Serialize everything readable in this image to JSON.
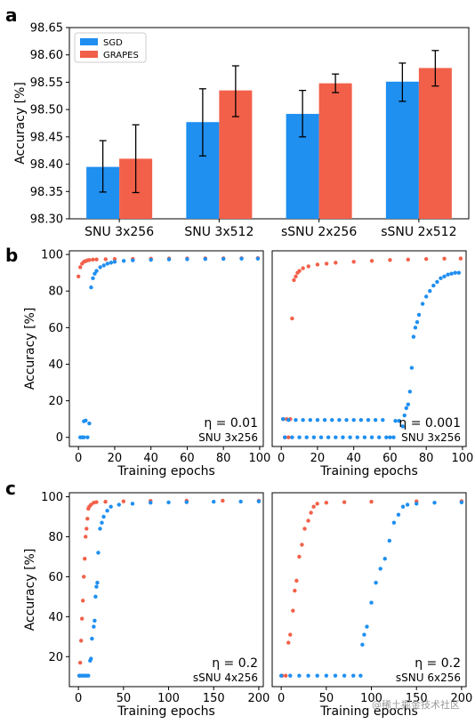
{
  "colors": {
    "sgd": "#1f8ff0",
    "grapes": "#f2604a"
  },
  "watermark": "@稀土掘金技术社区",
  "chart_data": [
    {
      "panel": "a",
      "type": "bar",
      "categories": [
        "SNU 3x256",
        "SNU 3x512",
        "sSNU 2x256",
        "sSNU 2x512"
      ],
      "ylabel": "Accuracy [%]",
      "ylim": [
        98.3,
        98.65
      ],
      "yticks": [
        "98.30",
        "98.35",
        "98.40",
        "98.45",
        "98.50",
        "98.55",
        "98.60",
        "98.65"
      ],
      "legend": "top-left",
      "series": [
        {
          "name": "SGD",
          "values": [
            98.395,
            98.477,
            98.492,
            98.551
          ],
          "err_low": [
            98.349,
            98.415,
            98.45,
            98.515
          ],
          "err_high": [
            98.443,
            98.538,
            98.535,
            98.585
          ]
        },
        {
          "name": "GRAPES",
          "values": [
            98.41,
            98.535,
            98.548,
            98.576
          ],
          "err_low": [
            98.348,
            98.487,
            98.531,
            98.543
          ],
          "err_high": [
            98.472,
            98.58,
            98.565,
            98.608
          ]
        }
      ]
    },
    {
      "panel": "b",
      "type": "scatter",
      "xlabel": "Training epochs",
      "ylabel": "Accuracy [%]",
      "xlim": [
        -5,
        102
      ],
      "ylim": [
        -5,
        102
      ],
      "xticks": [
        "0",
        "20",
        "40",
        "60",
        "80",
        "100"
      ],
      "yticks": [
        "0",
        "20",
        "40",
        "60",
        "80",
        "100"
      ],
      "annotation": "η = 0.01",
      "model": "SNU 3x256",
      "series": [
        {
          "name": "SGD",
          "points": [
            [
              1,
              0
            ],
            [
              2,
              0
            ],
            [
              3,
              0
            ],
            [
              3,
              8.8
            ],
            [
              4,
              9.2
            ],
            [
              5,
              0
            ],
            [
              6,
              7.6
            ],
            [
              7,
              82
            ],
            [
              8,
              87
            ],
            [
              9,
              89.5
            ],
            [
              10,
              91
            ],
            [
              12,
              93
            ],
            [
              14,
              94
            ],
            [
              16,
              95
            ],
            [
              18,
              95.5
            ],
            [
              20,
              96
            ],
            [
              25,
              96.5
            ],
            [
              30,
              96.8
            ],
            [
              40,
              97.1
            ],
            [
              50,
              97.3
            ],
            [
              60,
              97.4
            ],
            [
              70,
              97.5
            ],
            [
              80,
              97.6
            ],
            [
              90,
              97.7
            ],
            [
              99,
              97.7
            ]
          ]
        },
        {
          "name": "GRAPES",
          "points": [
            [
              0,
              88
            ],
            [
              1,
              93
            ],
            [
              2,
              95
            ],
            [
              3,
              96
            ],
            [
              4,
              96.4
            ],
            [
              5,
              96.8
            ],
            [
              6,
              97
            ],
            [
              8,
              97.2
            ],
            [
              10,
              97.3
            ],
            [
              15,
              97.4
            ],
            [
              20,
              97.5
            ],
            [
              30,
              97.6
            ],
            [
              40,
              97.7
            ],
            [
              50,
              97.8
            ],
            [
              60,
              97.85
            ],
            [
              70,
              97.9
            ],
            [
              80,
              97.9
            ],
            [
              90,
              97.95
            ],
            [
              99,
              98
            ]
          ]
        }
      ]
    },
    {
      "panel": "b-right",
      "type": "scatter",
      "xlabel": "Training epochs",
      "xlim": [
        -5,
        102
      ],
      "ylim": [
        -5,
        102
      ],
      "xticks": [
        "0",
        "20",
        "40",
        "60",
        "80",
        "100"
      ],
      "annotation": "η = 0.001",
      "model": "SNU 3x256",
      "series": [
        {
          "name": "SGD",
          "points": [
            [
              1,
              10
            ],
            [
              2,
              0
            ],
            [
              4,
              9.5
            ],
            [
              6,
              0
            ],
            [
              8,
              9.5
            ],
            [
              10,
              0
            ],
            [
              12,
              9.5
            ],
            [
              14,
              0
            ],
            [
              16,
              9.5
            ],
            [
              18,
              0
            ],
            [
              20,
              9.5
            ],
            [
              22,
              0
            ],
            [
              24,
              9.5
            ],
            [
              26,
              0
            ],
            [
              28,
              9.5
            ],
            [
              30,
              0
            ],
            [
              32,
              9.5
            ],
            [
              34,
              0
            ],
            [
              36,
              9.5
            ],
            [
              38,
              0
            ],
            [
              40,
              9.5
            ],
            [
              42,
              0
            ],
            [
              44,
              9.5
            ],
            [
              46,
              0
            ],
            [
              48,
              9.5
            ],
            [
              50,
              0
            ],
            [
              52,
              9.5
            ],
            [
              54,
              0
            ],
            [
              56,
              9.5
            ],
            [
              58,
              0
            ],
            [
              60,
              0
            ],
            [
              62,
              0
            ],
            [
              63,
              9
            ],
            [
              65,
              9
            ],
            [
              67,
              6
            ],
            [
              68,
              12
            ],
            [
              69,
              16
            ],
            [
              70,
              18
            ],
            [
              71,
              25
            ],
            [
              72,
              38
            ],
            [
              73,
              55
            ],
            [
              74,
              60
            ],
            [
              75,
              63
            ],
            [
              76,
              67
            ],
            [
              78,
              73
            ],
            [
              80,
              77
            ],
            [
              82,
              80
            ],
            [
              84,
              83
            ],
            [
              86,
              85
            ],
            [
              88,
              87
            ],
            [
              90,
              88
            ],
            [
              92,
              89
            ],
            [
              94,
              89.5
            ],
            [
              96,
              90
            ],
            [
              98,
              90
            ]
          ]
        },
        {
          "name": "GRAPES",
          "points": [
            [
              1,
              10
            ],
            [
              2,
              0
            ],
            [
              3,
              10
            ],
            [
              4,
              0
            ],
            [
              5,
              10
            ],
            [
              6,
              65
            ],
            [
              7,
              86
            ],
            [
              8,
              88
            ],
            [
              9,
              90
            ],
            [
              10,
              91
            ],
            [
              12,
              92.5
            ],
            [
              15,
              93.5
            ],
            [
              20,
              94.5
            ],
            [
              25,
              95
            ],
            [
              30,
              95.5
            ],
            [
              40,
              96
            ],
            [
              50,
              96.5
            ],
            [
              60,
              97
            ],
            [
              70,
              97.2
            ],
            [
              80,
              97.5
            ],
            [
              90,
              97.7
            ],
            [
              99,
              97.8
            ]
          ]
        }
      ]
    },
    {
      "panel": "c",
      "type": "scatter",
      "xlabel": "Training epochs",
      "ylabel": "Accuracy [%]",
      "xlim": [
        -10,
        205
      ],
      "ylim": [
        5,
        102
      ],
      "xticks": [
        "0",
        "50",
        "100",
        "150",
        "200"
      ],
      "yticks": [
        "20",
        "40",
        "60",
        "80",
        "100"
      ],
      "annotation": "η = 0.2",
      "model": "sSNU 4x256",
      "series": [
        {
          "name": "SGD",
          "points": [
            [
              1,
              10.5
            ],
            [
              3,
              10.5
            ],
            [
              5,
              10.5
            ],
            [
              7,
              10.5
            ],
            [
              9,
              10.5
            ],
            [
              11,
              10.5
            ],
            [
              13,
              18
            ],
            [
              14,
              19
            ],
            [
              15,
              29
            ],
            [
              17,
              35
            ],
            [
              18,
              38
            ],
            [
              19,
              50
            ],
            [
              20,
              55
            ],
            [
              21,
              57
            ],
            [
              22,
              72
            ],
            [
              24,
              84
            ],
            [
              26,
              87
            ],
            [
              28,
              90
            ],
            [
              32,
              93
            ],
            [
              36,
              95
            ],
            [
              45,
              96
            ],
            [
              60,
              96.5
            ],
            [
              80,
              97
            ],
            [
              100,
              97.2
            ],
            [
              120,
              97.3
            ],
            [
              150,
              97.5
            ],
            [
              180,
              97.6
            ],
            [
              200,
              97.7
            ]
          ]
        },
        {
          "name": "GRAPES",
          "points": [
            [
              1,
              10.5
            ],
            [
              2,
              17
            ],
            [
              3,
              28
            ],
            [
              4,
              39
            ],
            [
              5,
              48
            ],
            [
              6,
              60
            ],
            [
              7,
              69
            ],
            [
              8,
              80
            ],
            [
              9,
              84
            ],
            [
              10,
              89
            ],
            [
              11,
              94
            ],
            [
              12,
              95
            ],
            [
              14,
              96
            ],
            [
              17,
              97
            ],
            [
              20,
              97.3
            ],
            [
              30,
              97.5
            ],
            [
              50,
              97.7
            ],
            [
              80,
              97.9
            ],
            [
              120,
              98
            ],
            [
              160,
              98
            ],
            [
              200,
              98
            ]
          ]
        }
      ]
    },
    {
      "panel": "c-right",
      "type": "scatter",
      "xlabel": "Training epochs",
      "xlim": [
        -10,
        205
      ],
      "ylim": [
        5,
        102
      ],
      "xticks": [
        "0",
        "50",
        "100",
        "150",
        "200"
      ],
      "annotation": "η = 0.2",
      "model": "sSNU 6x256",
      "series": [
        {
          "name": "SGD",
          "points": [
            [
              0,
              10.5
            ],
            [
              10,
              10.5
            ],
            [
              20,
              10.5
            ],
            [
              30,
              10.5
            ],
            [
              40,
              10.5
            ],
            [
              50,
              10.5
            ],
            [
              60,
              10.5
            ],
            [
              70,
              10.5
            ],
            [
              80,
              10.5
            ],
            [
              88,
              10.5
            ],
            [
              90,
              26
            ],
            [
              92,
              31
            ],
            [
              95,
              35
            ],
            [
              100,
              47
            ],
            [
              105,
              57
            ],
            [
              110,
              64
            ],
            [
              115,
              69
            ],
            [
              120,
              78
            ],
            [
              125,
              87
            ],
            [
              130,
              91
            ],
            [
              135,
              95
            ],
            [
              140,
              96
            ],
            [
              150,
              96.5
            ],
            [
              170,
              97
            ],
            [
              200,
              97.2
            ]
          ]
        },
        {
          "name": "GRAPES",
          "points": [
            [
              1,
              10.5
            ],
            [
              5,
              10.5
            ],
            [
              8,
              27
            ],
            [
              10,
              31
            ],
            [
              13,
              43
            ],
            [
              15,
              53
            ],
            [
              17,
              58
            ],
            [
              20,
              70
            ],
            [
              23,
              76
            ],
            [
              26,
              84
            ],
            [
              30,
              88
            ],
            [
              33,
              92
            ],
            [
              36,
              95
            ],
            [
              40,
              96.5
            ],
            [
              50,
              97
            ],
            [
              70,
              97.3
            ],
            [
              100,
              97.5
            ],
            [
              150,
              97.7
            ],
            [
              200,
              97.8
            ]
          ]
        }
      ]
    }
  ]
}
